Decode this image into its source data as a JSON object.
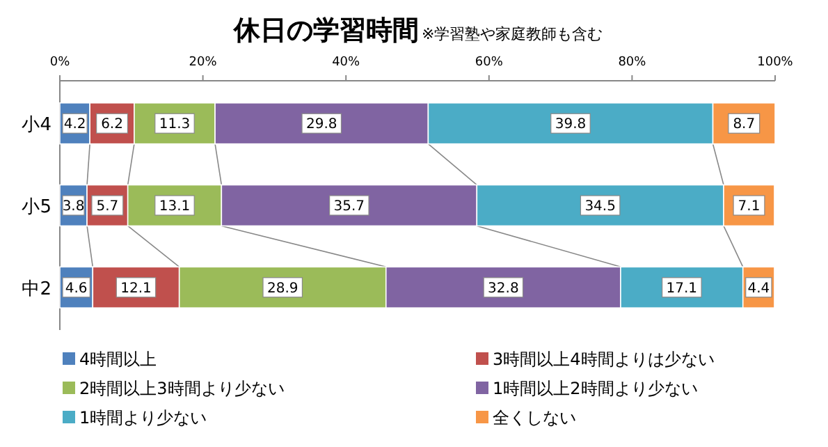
{
  "chart_data": {
    "type": "bar",
    "orientation": "horizontal",
    "stacked": true,
    "title": "休日の学習時間",
    "subtitle": "※学習塾や家庭教師も含む",
    "categories": [
      "小4",
      "小5",
      "中2"
    ],
    "series": [
      {
        "name": "4時間以上",
        "color": "#4f81bd",
        "values": [
          4.2,
          3.8,
          4.6
        ]
      },
      {
        "name": "3時間以上4時間よりは少ない",
        "color": "#c0504d",
        "values": [
          6.2,
          5.7,
          12.1
        ]
      },
      {
        "name": "2時間以上3時間より少ない",
        "color": "#9bbb59",
        "values": [
          11.3,
          13.1,
          28.9
        ]
      },
      {
        "name": "1時間以上2時間より少ない",
        "color": "#8064a2",
        "values": [
          29.8,
          35.7,
          32.8
        ]
      },
      {
        "name": "1時間より少ない",
        "color": "#4bacc6",
        "values": [
          39.8,
          34.5,
          17.1
        ]
      },
      {
        "name": "全くしない",
        "color": "#f79646",
        "values": [
          8.7,
          7.1,
          4.4
        ]
      }
    ],
    "xlim": [
      0,
      100
    ],
    "xticks": [
      {
        "value": 0,
        "label": "0%"
      },
      {
        "value": 20,
        "label": "20%"
      },
      {
        "value": 40,
        "label": "40%"
      },
      {
        "value": 60,
        "label": "60%"
      },
      {
        "value": 80,
        "label": "80%"
      },
      {
        "value": 100,
        "label": "100%"
      }
    ],
    "data_labels": true,
    "legend": "bottom",
    "grid": false
  }
}
